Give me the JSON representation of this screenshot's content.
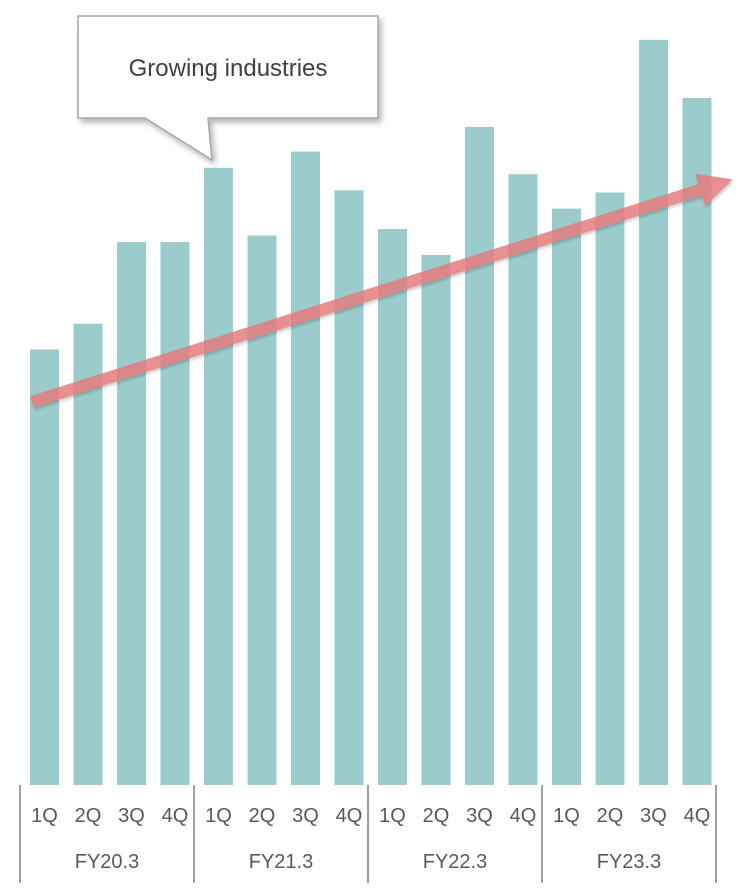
{
  "chart_data": {
    "type": "bar",
    "categories": [
      "1Q",
      "2Q",
      "3Q",
      "4Q",
      "1Q",
      "2Q",
      "3Q",
      "4Q",
      "1Q",
      "2Q",
      "3Q",
      "4Q",
      "1Q",
      "2Q",
      "3Q",
      "4Q"
    ],
    "groups": [
      {
        "label": "FY20.3",
        "quarters": [
          "1Q",
          "2Q",
          "3Q",
          "4Q"
        ]
      },
      {
        "label": "FY21.3",
        "quarters": [
          "1Q",
          "2Q",
          "3Q",
          "4Q"
        ]
      },
      {
        "label": "FY22.3",
        "quarters": [
          "1Q",
          "2Q",
          "3Q",
          "4Q"
        ]
      },
      {
        "label": "FY23.3",
        "quarters": [
          "1Q",
          "2Q",
          "3Q",
          "4Q"
        ]
      }
    ],
    "values": [
      405,
      429,
      505,
      505,
      574,
      511,
      589,
      553,
      517,
      493,
      612,
      568,
      536,
      551,
      693,
      639
    ],
    "ylim": [
      0,
      730
    ],
    "bar_color": "#9bcccb",
    "trend_color": "#e57c7f",
    "annotation": "Growing industries",
    "grid": false
  }
}
